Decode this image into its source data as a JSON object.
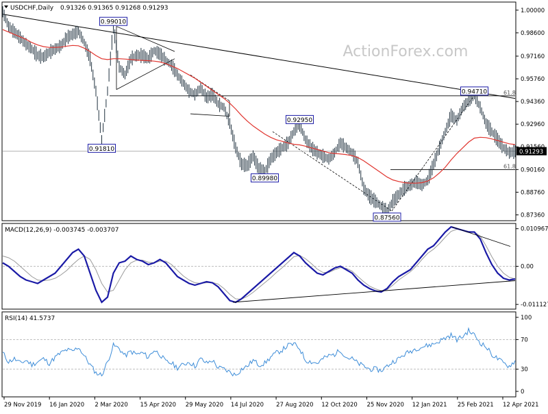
{
  "chart_data": {
    "type": "line",
    "symbol_title": "USDCHF,Daily",
    "ohlc_readout": "0.91326 0.91365 0.91268 0.91293",
    "watermark": "ActionForex.com",
    "x_tick_labels": [
      "29 Nov 2019",
      "16 Jan 2020",
      "2 Mar 2020",
      "15 Apr 2020",
      "29 May 2020",
      "14 Jul 2020",
      "27 Aug 2020",
      "12 Oct 2020",
      "25 Nov 2020",
      "12 Jan 2021",
      "25 Feb 2021",
      "12 Apr 2021"
    ],
    "price_panel": {
      "y_ticks": [
        "1.00000",
        "0.98600",
        "0.97160",
        "0.95760",
        "0.94360",
        "0.92960",
        "0.91560",
        "0.90160",
        "0.88760",
        "0.87360"
      ],
      "ylim": [
        0.87,
        1.005
      ],
      "current_price": "0.91293",
      "series": [
        {
          "name": "",
          "color": "#1e2f3c",
          "values": [
            0.999,
            0.99,
            0.9865,
            0.983,
            0.979,
            0.976,
            0.972,
            0.971,
            0.974,
            0.976,
            0.978,
            0.983,
            0.985,
            0.987,
            0.98,
            0.97,
            0.95,
            0.92,
            0.95,
            0.9901,
            0.965,
            0.96,
            0.97,
            0.972,
            0.972,
            0.97,
            0.975,
            0.973,
            0.969,
            0.966,
            0.96,
            0.955,
            0.95,
            0.948,
            0.952,
            0.946,
            0.948,
            0.942,
            0.94,
            0.93,
            0.915,
            0.905,
            0.904,
            0.91,
            0.902,
            0.9,
            0.908,
            0.912,
            0.915,
            0.918,
            0.925,
            0.9295,
            0.92,
            0.915,
            0.912,
            0.91,
            0.908,
            0.912,
            0.918,
            0.915,
            0.912,
            0.906,
            0.89,
            0.885,
            0.882,
            0.879,
            0.8756,
            0.882,
            0.886,
            0.89,
            0.892,
            0.894,
            0.892,
            0.895,
            0.905,
            0.915,
            0.925,
            0.935,
            0.932,
            0.94,
            0.944,
            0.9471,
            0.94,
            0.93,
            0.925,
            0.92,
            0.915,
            0.912,
            0.9129
          ]
        },
        {
          "name": "",
          "color": "#e0342e",
          "values": [
            0.988,
            0.9865,
            0.985,
            0.9835,
            0.982,
            0.98,
            0.9785,
            0.9775,
            0.977,
            0.977,
            0.9772,
            0.9778,
            0.9782,
            0.978,
            0.9765,
            0.9745,
            0.972,
            0.97,
            0.9695,
            0.97,
            0.97,
            0.9698,
            0.9695,
            0.9692,
            0.969,
            0.9688,
            0.9685,
            0.968,
            0.967,
            0.9655,
            0.964,
            0.962,
            0.96,
            0.958,
            0.9555,
            0.953,
            0.9505,
            0.948,
            0.9455,
            0.9425,
            0.939,
            0.935,
            0.9315,
            0.9285,
            0.926,
            0.9235,
            0.9215,
            0.92,
            0.919,
            0.918,
            0.9172,
            0.9168,
            0.916,
            0.915,
            0.914,
            0.913,
            0.912,
            0.9115,
            0.9112,
            0.9108,
            0.9102,
            0.909,
            0.907,
            0.9045,
            0.902,
            0.8995,
            0.897,
            0.8952,
            0.8942,
            0.8935,
            0.8932,
            0.8932,
            0.8935,
            0.8945,
            0.8965,
            0.8995,
            0.903,
            0.9075,
            0.9115,
            0.915,
            0.9185,
            0.921,
            0.9215,
            0.9213,
            0.9205,
            0.9195,
            0.9185,
            0.9175,
            0.917
          ]
        }
      ],
      "annotations": [
        {
          "text": "0.99010",
          "x_index": 19,
          "price": 0.9901,
          "side": "top"
        },
        {
          "text": "0.91810",
          "x_index": 17,
          "price": 0.9181,
          "side": "bottom"
        },
        {
          "text": "0.89980",
          "x_index": 45,
          "price": 0.8998,
          "side": "bottom"
        },
        {
          "text": "0.92950",
          "x_index": 51,
          "price": 0.9295,
          "side": "top"
        },
        {
          "text": "0.87560",
          "x_index": 66,
          "price": 0.8756,
          "side": "bottom"
        },
        {
          "text": "0.94710",
          "x_index": 81,
          "price": 0.9471,
          "side": "top"
        }
      ],
      "fib_labels": [
        {
          "text": "61.8",
          "price": 0.9471
        },
        {
          "text": "61.8",
          "price": 0.9015
        }
      ]
    },
    "macd_panel": {
      "title": "MACD(12,26,9) -0.003745 -0.003707",
      "y_ticks": [
        "0.010967",
        "0.00",
        "-0.011127"
      ],
      "ylim": [
        -0.0125,
        0.0125
      ],
      "series": [
        {
          "name": "",
          "color": "#1a1aa6",
          "values": [
            0.001,
            0.0,
            -0.0015,
            -0.003,
            -0.004,
            -0.0045,
            -0.005,
            -0.004,
            -0.003,
            -0.002,
            0.0,
            0.002,
            0.004,
            0.005,
            0.003,
            -0.002,
            -0.007,
            -0.0105,
            -0.009,
            -0.002,
            0.001,
            0.0015,
            0.003,
            0.002,
            0.0015,
            0.0005,
            0.001,
            0.002,
            0.001,
            -0.001,
            -0.003,
            -0.004,
            -0.005,
            -0.0055,
            -0.005,
            -0.0045,
            -0.0048,
            -0.006,
            -0.008,
            -0.01,
            -0.0105,
            -0.0095,
            -0.008,
            -0.0065,
            -0.005,
            -0.0035,
            -0.002,
            -0.0005,
            0.001,
            0.0025,
            0.004,
            0.003,
            0.001,
            -0.0005,
            -0.002,
            -0.0025,
            -0.0015,
            -0.0005,
            0.0,
            -0.001,
            -0.002,
            -0.004,
            -0.0055,
            -0.0065,
            -0.0072,
            -0.0075,
            -0.0065,
            -0.0045,
            -0.003,
            -0.002,
            -0.001,
            0.001,
            0.003,
            0.005,
            0.006,
            0.008,
            0.01,
            0.0115,
            0.011,
            0.0105,
            0.01,
            0.01,
            0.008,
            0.004,
            0.0005,
            -0.002,
            -0.0035,
            -0.004,
            -0.0037
          ]
        },
        {
          "name": "",
          "color": "#9a9a9a",
          "values": [
            0.003,
            0.0025,
            0.0015,
            0.0,
            -0.0015,
            -0.003,
            -0.004,
            -0.0042,
            -0.004,
            -0.0035,
            -0.0025,
            -0.0012,
            0.0005,
            0.002,
            0.003,
            0.002,
            -0.001,
            -0.005,
            -0.0075,
            -0.007,
            -0.004,
            -0.001,
            0.001,
            0.0018,
            0.0018,
            0.0012,
            0.001,
            0.0015,
            0.0015,
            0.0005,
            -0.0012,
            -0.0028,
            -0.004,
            -0.0048,
            -0.005,
            -0.0048,
            -0.0047,
            -0.0052,
            -0.0065,
            -0.0082,
            -0.0095,
            -0.0096,
            -0.0088,
            -0.0076,
            -0.0062,
            -0.0048,
            -0.0034,
            -0.0018,
            -0.0004,
            0.0012,
            0.0028,
            0.0032,
            0.0022,
            0.0008,
            -0.0008,
            -0.0018,
            -0.0018,
            -0.001,
            -0.0004,
            -0.0006,
            -0.0014,
            -0.003,
            -0.0045,
            -0.0058,
            -0.0066,
            -0.0071,
            -0.0068,
            -0.0055,
            -0.004,
            -0.0028,
            -0.0016,
            0.0,
            0.002,
            0.0038,
            0.005,
            0.0066,
            0.0085,
            0.0102,
            0.0108,
            0.0106,
            0.0102,
            0.01,
            0.0088,
            0.006,
            0.0028,
            0.0,
            -0.002,
            -0.0032,
            -0.0037
          ]
        }
      ]
    },
    "rsi_panel": {
      "title": "RSI(14) 41.5737",
      "y_ticks": [
        "100",
        "70",
        "30",
        "0"
      ],
      "ylim": [
        0,
        100
      ],
      "series": [
        {
          "name": "",
          "color": "#3c8cd8",
          "values": [
            52,
            40,
            44,
            38,
            42,
            36,
            40,
            44,
            38,
            46,
            52,
            56,
            54,
            60,
            48,
            36,
            25,
            22,
            40,
            62,
            58,
            48,
            54,
            50,
            52,
            46,
            56,
            50,
            40,
            38,
            32,
            36,
            40,
            34,
            44,
            38,
            42,
            32,
            30,
            26,
            22,
            30,
            34,
            42,
            36,
            38,
            46,
            52,
            56,
            62,
            64,
            58,
            42,
            40,
            38,
            44,
            48,
            50,
            56,
            46,
            44,
            38,
            34,
            30,
            30,
            28,
            34,
            40,
            44,
            50,
            54,
            58,
            60,
            62,
            64,
            68,
            72,
            76,
            70,
            74,
            82,
            76,
            66,
            60,
            50,
            44,
            38,
            34,
            41.5737
          ]
        }
      ]
    }
  }
}
